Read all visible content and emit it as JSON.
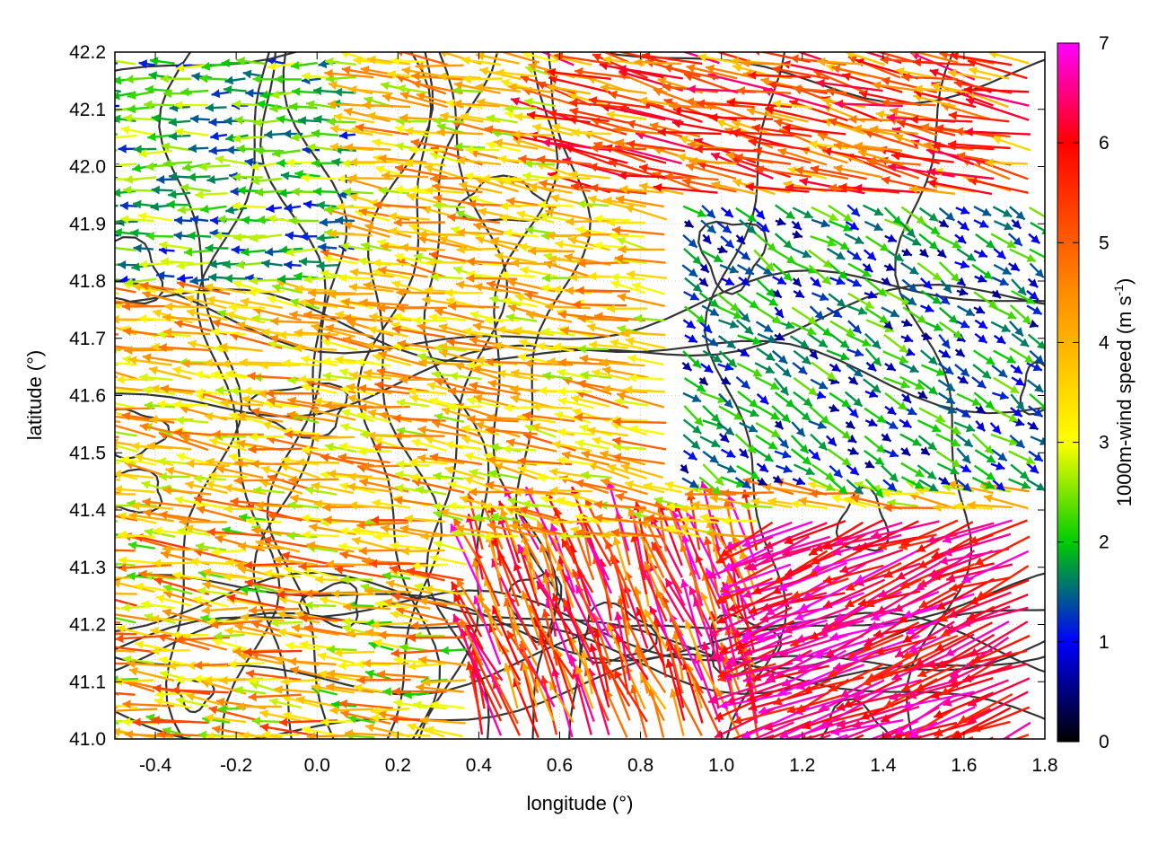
{
  "chart_data": {
    "type": "vector-field",
    "xlabel": "longitude (°)",
    "ylabel": "latitude (°)",
    "xlim": [
      -0.5,
      1.8
    ],
    "ylim": [
      41.0,
      42.2
    ],
    "x_ticks": [
      "-0.4",
      "-0.2",
      "0.0",
      "0.2",
      "0.4",
      "0.6",
      "0.8",
      "1.0",
      "1.2",
      "1.4",
      "1.6",
      "1.8"
    ],
    "y_ticks": [
      "41.0",
      "41.1",
      "41.2",
      "41.3",
      "41.4",
      "41.5",
      "41.6",
      "41.7",
      "41.8",
      "41.9",
      "42.0",
      "42.1",
      "42.2"
    ],
    "grid": true,
    "colorbar": {
      "label_main": "1000m-wind speed (m s",
      "label_sup": "-1",
      "label_end": ")",
      "range": [
        0,
        7
      ],
      "ticks": [
        "0",
        "1",
        "2",
        "3",
        "4",
        "5",
        "6",
        "7"
      ],
      "colors": [
        "#000000",
        "#0000ff",
        "#00cc00",
        "#ffff00",
        "#ff8c00",
        "#ff0000",
        "#ff00ff"
      ]
    },
    "contour_color": "#333333",
    "wind_regions": [
      {
        "region": "northwest",
        "lon": [
          -0.5,
          0.1
        ],
        "lat": [
          41.8,
          42.2
        ],
        "u": -1.0,
        "v": 0.0,
        "speed": [
          1.0,
          3.0
        ]
      },
      {
        "region": "central-west",
        "lon": [
          -0.5,
          0.8
        ],
        "lat": [
          41.4,
          41.8
        ],
        "u": -1.0,
        "v": 0.15,
        "speed": [
          2.5,
          5.0
        ]
      },
      {
        "region": "southwest",
        "lon": [
          -0.5,
          0.4
        ],
        "lat": [
          41.0,
          41.4
        ],
        "u": -1.0,
        "v": 0.1,
        "speed": [
          2.0,
          5.5
        ]
      },
      {
        "region": "northeast",
        "lon": [
          0.6,
          1.8
        ],
        "lat": [
          41.95,
          42.2
        ],
        "u": -1.0,
        "v": 0.2,
        "speed": [
          3.5,
          6.5
        ]
      },
      {
        "region": "east-center",
        "lon": [
          0.9,
          1.8
        ],
        "lat": [
          41.45,
          41.95
        ],
        "u": 0.6,
        "v": -0.4,
        "speed": [
          0.5,
          2.5
        ]
      },
      {
        "region": "southeast",
        "lon": [
          1.1,
          1.8
        ],
        "lat": [
          41.0,
          41.4
        ],
        "u": -0.9,
        "v": -0.35,
        "speed": [
          5.5,
          7.0
        ]
      },
      {
        "region": "south-center",
        "lon": [
          0.4,
          1.1
        ],
        "lat": [
          41.0,
          41.35
        ],
        "u": -0.3,
        "v": 0.8,
        "speed": [
          4.0,
          7.0
        ]
      }
    ]
  }
}
